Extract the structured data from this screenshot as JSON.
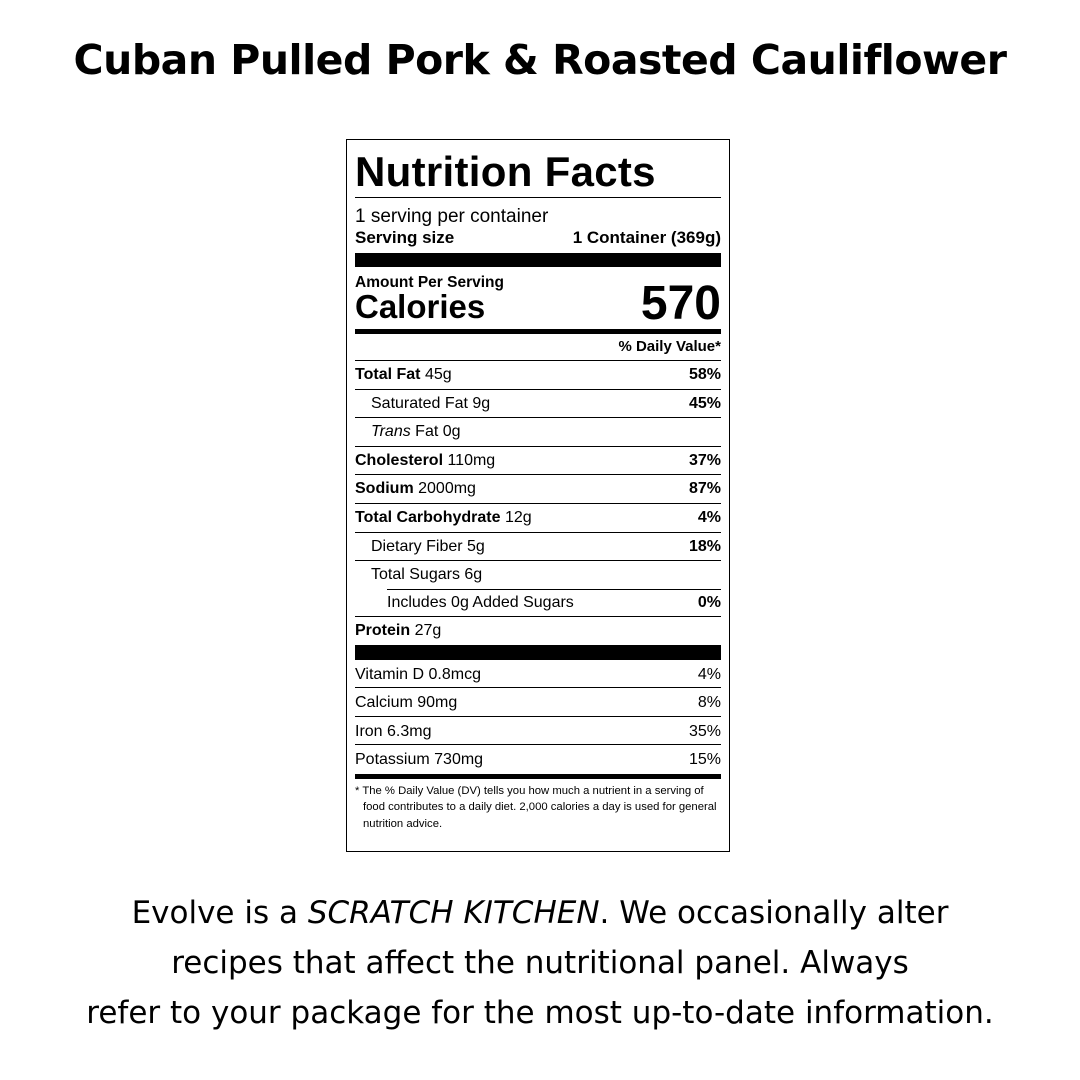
{
  "title": "Cuban Pulled Pork & Roasted Cauliflower",
  "label": {
    "heading": "Nutrition Facts",
    "servings_per_container": "1 serving per container",
    "serving_size_label": "Serving size",
    "serving_size_value": "1 Container (369g)",
    "amount_per_serving": "Amount Per Serving",
    "calories_label": "Calories",
    "calories_value": "570",
    "dv_header": "% Daily Value*",
    "nutrients": [
      {
        "name": "Total Fat",
        "amount": "45g",
        "dv": "58%"
      },
      {
        "name": "Saturated Fat",
        "amount": "9g",
        "dv": "45%"
      },
      {
        "name": "Trans",
        "name_suffix": "Fat",
        "amount": "0g",
        "dv": ""
      },
      {
        "name": "Cholesterol",
        "amount": "110mg",
        "dv": "37%"
      },
      {
        "name": "Sodium",
        "amount": "2000mg",
        "dv": "87%"
      },
      {
        "name": "Total Carbohydrate",
        "amount": "12g",
        "dv": "4%"
      },
      {
        "name": "Dietary Fiber",
        "amount": "5g",
        "dv": "18%"
      },
      {
        "name": "Total Sugars",
        "amount": "6g",
        "dv": ""
      },
      {
        "name": "Includes 0g Added Sugars",
        "amount": "",
        "dv": "0%"
      },
      {
        "name": "Protein",
        "amount": "27g",
        "dv": ""
      }
    ],
    "vitamins": [
      {
        "name": "Vitamin D 0.8mcg",
        "dv": "4%"
      },
      {
        "name": "Calcium 90mg",
        "dv": "8%"
      },
      {
        "name": "Iron 6.3mg",
        "dv": "35%"
      },
      {
        "name": "Potassium 730mg",
        "dv": "15%"
      }
    ],
    "footnote": "* The % Daily Value (DV) tells you how much a nutrient in a serving of food contributes to a daily diet. 2,000 calories a day is used for general nutrition advice."
  },
  "footer": {
    "line1_pre": "Evolve is a ",
    "line1_em": "SCRATCH KITCHEN",
    "line1_post": ". We occasionally alter",
    "line2": "recipes that affect the nutritional panel. Always",
    "line3": "refer to your package for the most up-to-date information."
  }
}
